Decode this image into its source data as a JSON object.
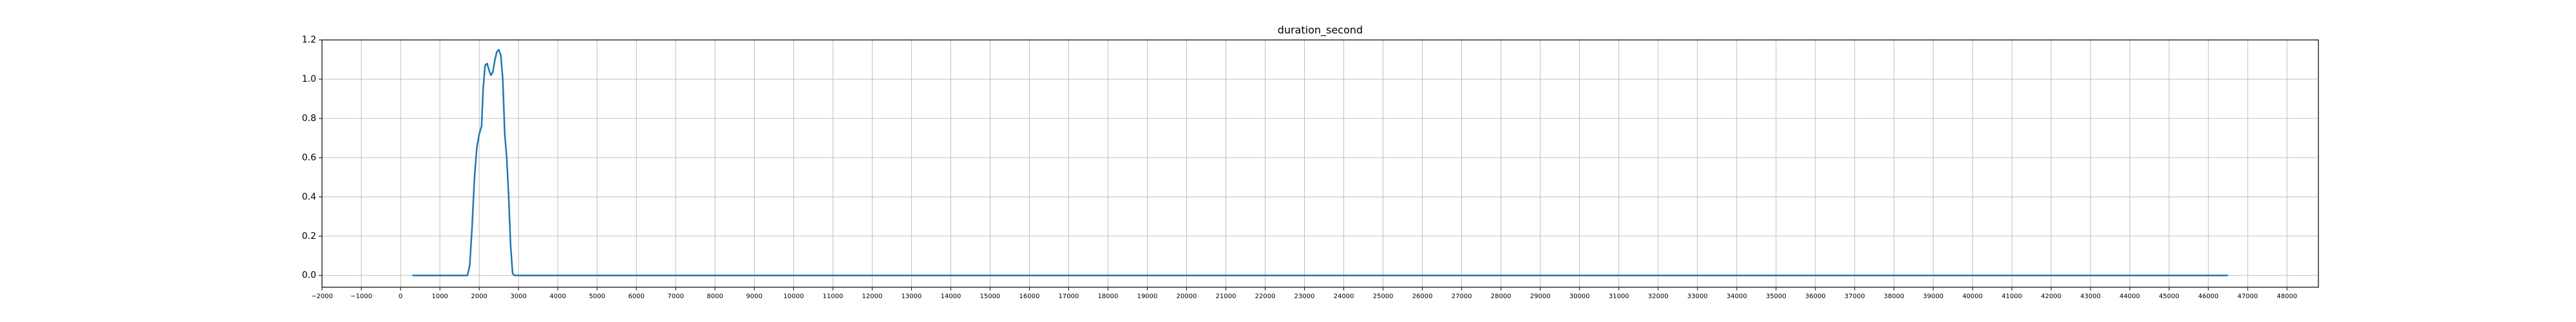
{
  "chart_data": {
    "type": "line",
    "title": "duration_second",
    "xlabel": "",
    "ylabel": "",
    "xlim": [
      -2000,
      48800
    ],
    "ylim": [
      -0.06,
      1.2
    ],
    "grid": true,
    "legend": "none",
    "x_ticks": [
      -2000,
      -1000,
      0,
      1000,
      2000,
      3000,
      4000,
      5000,
      6000,
      7000,
      8000,
      9000,
      10000,
      11000,
      12000,
      13000,
      14000,
      15000,
      16000,
      17000,
      18000,
      19000,
      20000,
      21000,
      22000,
      23000,
      24000,
      25000,
      26000,
      27000,
      28000,
      29000,
      30000,
      31000,
      32000,
      33000,
      34000,
      35000,
      36000,
      37000,
      38000,
      39000,
      40000,
      41000,
      42000,
      43000,
      44000,
      45000,
      46000,
      47000,
      48000
    ],
    "x_tick_labels": [
      "−2000",
      "−1000",
      "0",
      "1000",
      "2000",
      "3000",
      "4000",
      "5000",
      "6000",
      "7000",
      "8000",
      "9000",
      "10000",
      "11000",
      "12000",
      "13000",
      "14000",
      "15000",
      "16000",
      "17000",
      "18000",
      "19000",
      "20000",
      "21000",
      "22000",
      "23000",
      "24000",
      "25000",
      "26000",
      "27000",
      "28000",
      "29000",
      "30000",
      "31000",
      "32000",
      "33000",
      "34000",
      "35000",
      "36000",
      "37000",
      "38000",
      "39000",
      "40000",
      "41000",
      "42000",
      "43000",
      "44000",
      "45000",
      "46000",
      "47000",
      "48000"
    ],
    "y_ticks": [
      0.0,
      0.2,
      0.4,
      0.6,
      0.8,
      1.0,
      1.2
    ],
    "y_tick_labels": [
      "0.0",
      "0.2",
      "0.4",
      "0.6",
      "0.8",
      "1.0",
      "1.2"
    ],
    "series": [
      {
        "color": "#1f77b4",
        "x": [
          300,
          1700,
          1760,
          1820,
          1880,
          1940,
          2000,
          2060,
          2100,
          2150,
          2200,
          2260,
          2300,
          2350,
          2400,
          2450,
          2500,
          2550,
          2600,
          2650,
          2700,
          2750,
          2800,
          2850,
          2900,
          3000,
          10000,
          20000,
          30000,
          40000,
          46500
        ],
        "y": [
          0.0,
          0.0,
          0.05,
          0.25,
          0.5,
          0.65,
          0.72,
          0.76,
          0.95,
          1.07,
          1.08,
          1.04,
          1.02,
          1.04,
          1.1,
          1.14,
          1.15,
          1.12,
          1.0,
          0.72,
          0.6,
          0.4,
          0.15,
          0.01,
          0.0,
          0.0,
          0.0,
          0.0,
          0.0,
          0.0,
          0.0
        ]
      }
    ]
  }
}
